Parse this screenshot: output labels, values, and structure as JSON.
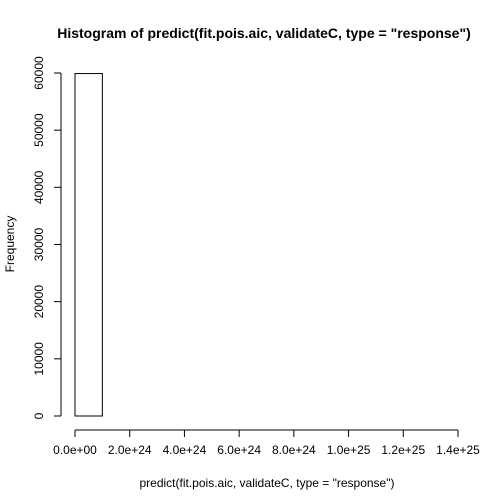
{
  "chart_data": {
    "type": "bar",
    "title": "Histogram of predict(fit.pois.aic, validateC, type = \"response\")",
    "xlabel": "predict(fit.pois.aic, validateC, type = \"response\")",
    "ylabel": "Frequency",
    "x_ticks": [
      0,
      2e+24,
      4e+24,
      6e+24,
      8e+24,
      1e+25,
      1.2e+25,
      1.4e+25
    ],
    "x_tick_labels": [
      "0.0e+00",
      "2.0e+24",
      "4.0e+24",
      "6.0e+24",
      "8.0e+24",
      "1.0e+25",
      "1.2e+25",
      "1.4e+25"
    ],
    "y_ticks": [
      0,
      10000,
      20000,
      30000,
      40000,
      50000,
      60000
    ],
    "y_tick_labels": [
      "0",
      "10000",
      "20000",
      "30000",
      "40000",
      "50000",
      "60000"
    ],
    "xlim": [
      0,
      1.4e+25
    ],
    "ylim": [
      0,
      60000
    ],
    "bins": [
      {
        "start": 0,
        "end": 1e+24,
        "count": 59900
      },
      {
        "start": 1e+24,
        "end": 2e+24,
        "count": 0
      },
      {
        "start": 2e+24,
        "end": 3e+24,
        "count": 0
      },
      {
        "start": 3e+24,
        "end": 4e+24,
        "count": 0
      },
      {
        "start": 4e+24,
        "end": 5e+24,
        "count": 0
      },
      {
        "start": 5e+24,
        "end": 6e+24,
        "count": 0
      },
      {
        "start": 6e+24,
        "end": 7e+24,
        "count": 0
      },
      {
        "start": 7e+24,
        "end": 8e+24,
        "count": 0
      },
      {
        "start": 8e+24,
        "end": 9e+24,
        "count": 0
      },
      {
        "start": 9e+24,
        "end": 1e+25,
        "count": 0
      },
      {
        "start": 1e+25,
        "end": 1.1e+25,
        "count": 0
      },
      {
        "start": 1.1e+25,
        "end": 1.2e+25,
        "count": 0
      },
      {
        "start": 1.2e+25,
        "end": 1.3e+25,
        "count": 0
      },
      {
        "start": 1.3e+25,
        "end": 1.4e+25,
        "count": 0
      }
    ],
    "grid": false,
    "legend": "none"
  }
}
